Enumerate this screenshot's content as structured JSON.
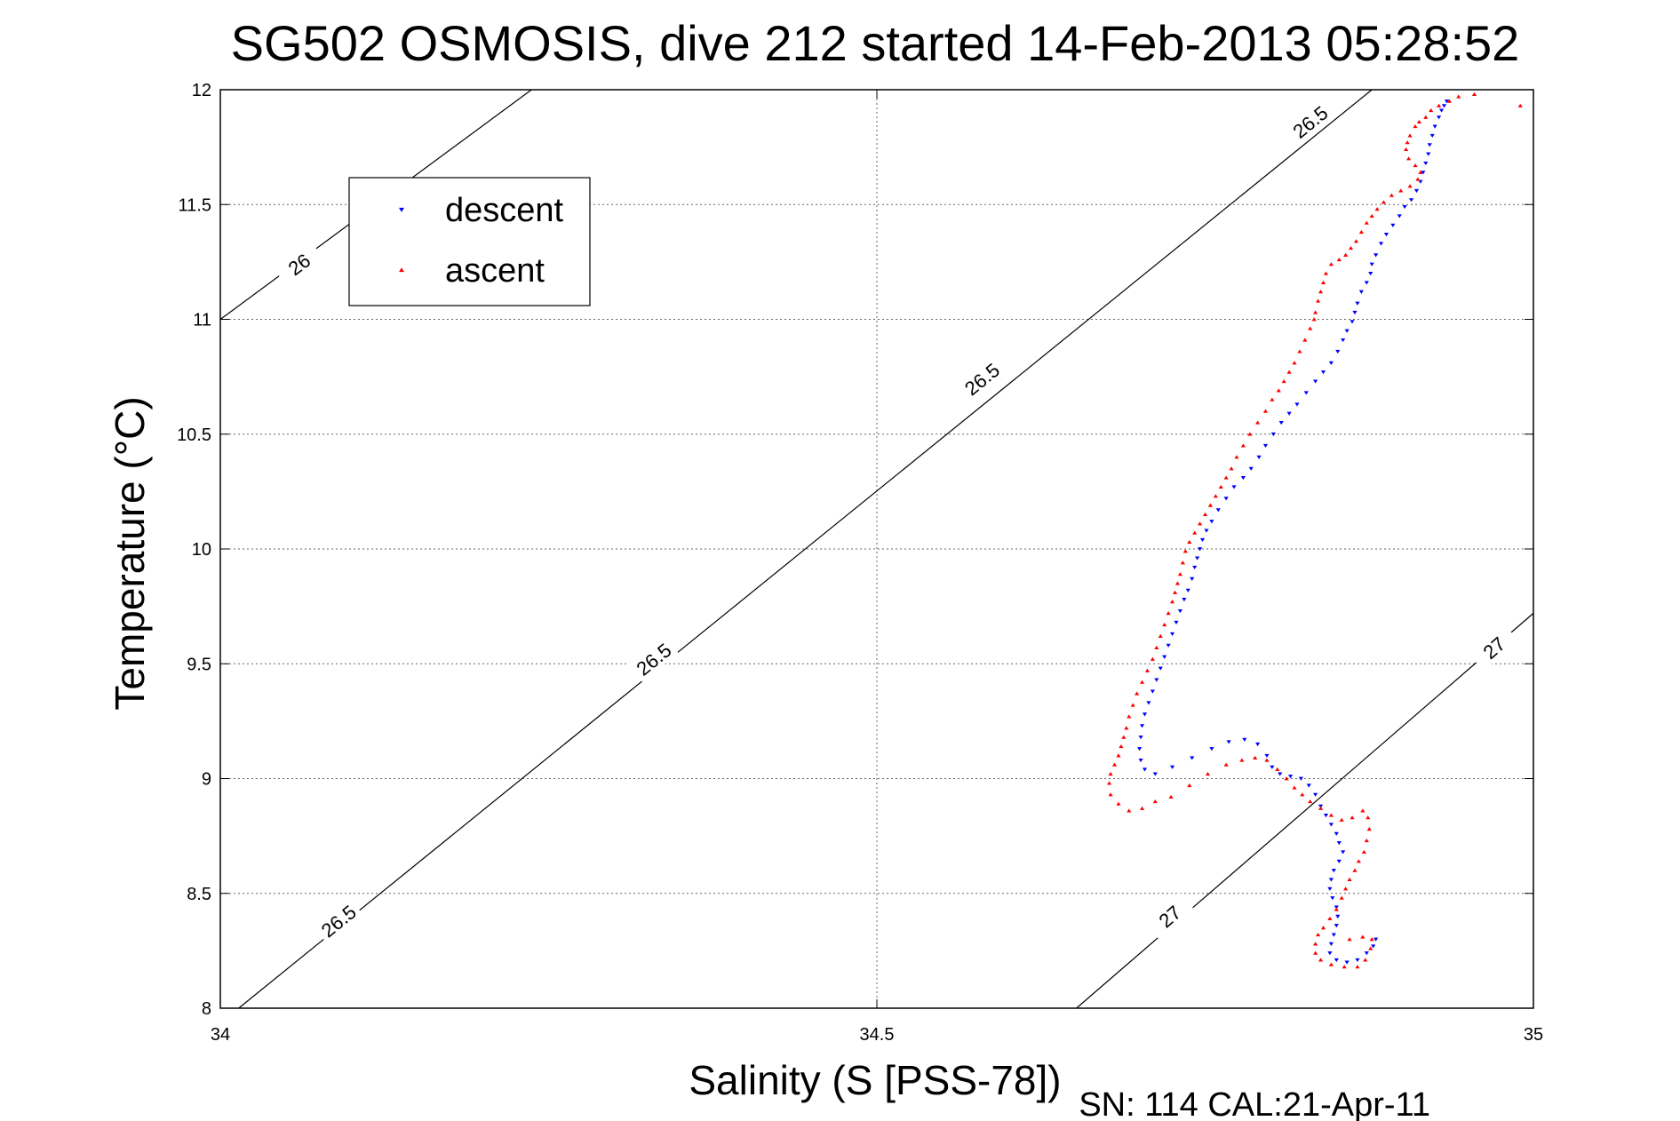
{
  "chart_data": {
    "type": "scatter",
    "title": "SG502 OSMOSIS, dive 212 started 14-Feb-2013 05:28:52",
    "xlabel": "Salinity (S [PSS-78])",
    "ylabel": "Temperature (°C)",
    "xlim": [
      34,
      35
    ],
    "ylim": [
      8,
      12
    ],
    "xticks": [
      "34",
      "34.5",
      "35"
    ],
    "yticks": [
      "8",
      "8.5",
      "9",
      "9.5",
      "10",
      "10.5",
      "11",
      "11.5",
      "12"
    ],
    "grid": true,
    "legend": {
      "placement": "top-left",
      "entries": [
        "descent",
        "ascent"
      ]
    },
    "footer": "SN: 114  CAL:21-Apr-11",
    "colors": {
      "descent": "#0000ff",
      "ascent": "#ff0000",
      "contour": "#000000"
    },
    "contours": [
      {
        "label": "26",
        "points": [
          [
            34.0,
            11.0
          ],
          [
            34.237,
            12.0
          ]
        ],
        "label_at": [
          34.06,
          11.24
        ]
      },
      {
        "label": "26.5",
        "points": [
          [
            34.014,
            8.0
          ],
          [
            34.877,
            12.0
          ]
        ],
        "label_at": [
          [
            34.09,
            8.38
          ],
          [
            34.33,
            9.52
          ],
          [
            34.58,
            10.74
          ],
          [
            34.83,
            11.86
          ]
        ]
      },
      {
        "label": "27",
        "points": [
          [
            34.652,
            8.0
          ],
          [
            35.0,
            9.72
          ]
        ],
        "label_at": [
          [
            34.723,
            8.4
          ],
          [
            34.97,
            9.57
          ]
        ]
      }
    ],
    "series": [
      {
        "name": "descent",
        "marker": "triangle-down",
        "points": [
          [
            34.934,
            11.95
          ],
          [
            34.932,
            11.93
          ],
          [
            34.93,
            11.91
          ],
          [
            34.928,
            11.88
          ],
          [
            34.925,
            11.84
          ],
          [
            34.923,
            11.8
          ],
          [
            34.921,
            11.76
          ],
          [
            34.92,
            11.72
          ],
          [
            34.918,
            11.68
          ],
          [
            34.916,
            11.64
          ],
          [
            34.914,
            11.6
          ],
          [
            34.911,
            11.56
          ],
          [
            34.907,
            11.52
          ],
          [
            34.902,
            11.49
          ],
          [
            34.898,
            11.45
          ],
          [
            34.893,
            11.41
          ],
          [
            34.888,
            11.37
          ],
          [
            34.884,
            11.33
          ],
          [
            34.88,
            11.28
          ],
          [
            34.877,
            11.24
          ],
          [
            34.876,
            11.2
          ],
          [
            34.873,
            11.16
          ],
          [
            34.869,
            11.12
          ],
          [
            34.866,
            11.07
          ],
          [
            34.864,
            11.03
          ],
          [
            34.862,
            10.99
          ],
          [
            34.858,
            10.95
          ],
          [
            34.855,
            10.91
          ],
          [
            34.851,
            10.86
          ],
          [
            34.846,
            10.81
          ],
          [
            34.84,
            10.77
          ],
          [
            34.834,
            10.73
          ],
          [
            34.827,
            10.68
          ],
          [
            34.82,
            10.63
          ],
          [
            34.814,
            10.59
          ],
          [
            34.808,
            10.55
          ],
          [
            34.802,
            10.5
          ],
          [
            34.796,
            10.45
          ],
          [
            34.791,
            10.4
          ],
          [
            34.785,
            10.35
          ],
          [
            34.779,
            10.31
          ],
          [
            34.772,
            10.27
          ],
          [
            34.766,
            10.22
          ],
          [
            34.76,
            10.17
          ],
          [
            34.755,
            10.12
          ],
          [
            34.751,
            10.08
          ],
          [
            34.748,
            10.04
          ],
          [
            34.746,
            10.0
          ],
          [
            34.744,
            9.96
          ],
          [
            34.742,
            9.92
          ],
          [
            34.74,
            9.87
          ],
          [
            34.737,
            9.82
          ],
          [
            34.734,
            9.78
          ],
          [
            34.731,
            9.73
          ],
          [
            34.728,
            9.68
          ],
          [
            34.725,
            9.63
          ],
          [
            34.722,
            9.58
          ],
          [
            34.719,
            9.53
          ],
          [
            34.716,
            9.48
          ],
          [
            34.713,
            9.43
          ],
          [
            34.71,
            9.38
          ],
          [
            34.707,
            9.33
          ],
          [
            34.704,
            9.28
          ],
          [
            34.702,
            9.23
          ],
          [
            34.701,
            9.18
          ],
          [
            34.7,
            9.13
          ],
          [
            34.701,
            9.08
          ],
          [
            34.704,
            9.04
          ],
          [
            34.712,
            9.02
          ],
          [
            34.725,
            9.05
          ],
          [
            34.74,
            9.09
          ],
          [
            34.755,
            9.13
          ],
          [
            34.768,
            9.16
          ],
          [
            34.78,
            9.17
          ],
          [
            34.79,
            9.15
          ],
          [
            34.797,
            9.1
          ],
          [
            34.801,
            9.05
          ],
          [
            34.807,
            9.02
          ],
          [
            34.815,
            9.01
          ],
          [
            34.823,
            9.0
          ],
          [
            34.829,
            8.97
          ],
          [
            34.834,
            8.93
          ],
          [
            34.838,
            8.88
          ],
          [
            34.842,
            8.84
          ],
          [
            34.846,
            8.8
          ],
          [
            34.85,
            8.76
          ],
          [
            34.852,
            8.72
          ],
          [
            34.855,
            8.68
          ],
          [
            34.852,
            8.64
          ],
          [
            34.848,
            8.6
          ],
          [
            34.846,
            8.56
          ],
          [
            34.845,
            8.52
          ],
          [
            34.847,
            8.48
          ],
          [
            34.85,
            8.44
          ],
          [
            34.851,
            8.4
          ],
          [
            34.85,
            8.36
          ],
          [
            34.848,
            8.32
          ],
          [
            34.846,
            8.28
          ],
          [
            34.845,
            8.24
          ],
          [
            34.85,
            8.21
          ],
          [
            34.858,
            8.2
          ],
          [
            34.866,
            8.21
          ],
          [
            34.873,
            8.24
          ],
          [
            34.878,
            8.27
          ],
          [
            34.88,
            8.3
          ]
        ]
      },
      {
        "name": "ascent",
        "marker": "triangle-up",
        "points": [
          [
            34.99,
            11.93
          ],
          [
            34.955,
            11.98
          ],
          [
            34.943,
            11.97
          ],
          [
            34.936,
            11.95
          ],
          [
            34.928,
            11.93
          ],
          [
            34.922,
            11.91
          ],
          [
            34.918,
            11.88
          ],
          [
            34.913,
            11.86
          ],
          [
            34.91,
            11.84
          ],
          [
            34.906,
            11.8
          ],
          [
            34.904,
            11.77
          ],
          [
            34.903,
            11.74
          ],
          [
            34.905,
            11.7
          ],
          [
            34.91,
            11.67
          ],
          [
            34.914,
            11.64
          ],
          [
            34.912,
            11.61
          ],
          [
            34.906,
            11.58
          ],
          [
            34.899,
            11.56
          ],
          [
            34.892,
            11.54
          ],
          [
            34.886,
            11.51
          ],
          [
            34.881,
            11.48
          ],
          [
            34.877,
            11.45
          ],
          [
            34.873,
            11.42
          ],
          [
            34.869,
            11.38
          ],
          [
            34.865,
            11.34
          ],
          [
            34.861,
            11.31
          ],
          [
            34.857,
            11.28
          ],
          [
            34.852,
            11.26
          ],
          [
            34.846,
            11.24
          ],
          [
            34.842,
            11.2
          ],
          [
            34.84,
            11.16
          ],
          [
            34.838,
            11.12
          ],
          [
            34.836,
            11.08
          ],
          [
            34.834,
            11.03
          ],
          [
            34.833,
            11.0
          ],
          [
            34.83,
            10.96
          ],
          [
            34.826,
            10.91
          ],
          [
            34.822,
            10.86
          ],
          [
            34.818,
            10.81
          ],
          [
            34.814,
            10.77
          ],
          [
            34.81,
            10.73
          ],
          [
            34.806,
            10.69
          ],
          [
            34.801,
            10.65
          ],
          [
            34.796,
            10.6
          ],
          [
            34.79,
            10.55
          ],
          [
            34.784,
            10.5
          ],
          [
            34.779,
            10.45
          ],
          [
            34.774,
            10.4
          ],
          [
            34.77,
            10.35
          ],
          [
            34.766,
            10.31
          ],
          [
            34.762,
            10.27
          ],
          [
            34.758,
            10.23
          ],
          [
            34.754,
            10.19
          ],
          [
            34.75,
            10.15
          ],
          [
            34.746,
            10.11
          ],
          [
            34.742,
            10.07
          ],
          [
            34.738,
            10.03
          ],
          [
            34.735,
            9.99
          ],
          [
            34.733,
            9.94
          ],
          [
            34.731,
            9.89
          ],
          [
            34.729,
            9.85
          ],
          [
            34.727,
            9.81
          ],
          [
            34.725,
            9.77
          ],
          [
            34.722,
            9.72
          ],
          [
            34.719,
            9.67
          ],
          [
            34.716,
            9.62
          ],
          [
            34.713,
            9.57
          ],
          [
            34.71,
            9.52
          ],
          [
            34.706,
            9.47
          ],
          [
            34.702,
            9.42
          ],
          [
            34.698,
            9.37
          ],
          [
            34.695,
            9.32
          ],
          [
            34.692,
            9.27
          ],
          [
            34.69,
            9.22
          ],
          [
            34.688,
            9.18
          ],
          [
            34.686,
            9.14
          ],
          [
            34.684,
            9.1
          ],
          [
            34.681,
            9.06
          ],
          [
            34.678,
            9.02
          ],
          [
            34.677,
            8.98
          ],
          [
            34.678,
            8.93
          ],
          [
            34.684,
            8.89
          ],
          [
            34.692,
            8.86
          ],
          [
            34.702,
            8.87
          ],
          [
            34.712,
            8.9
          ],
          [
            34.724,
            8.92
          ],
          [
            34.738,
            8.97
          ],
          [
            34.752,
            9.02
          ],
          [
            34.766,
            9.06
          ],
          [
            34.778,
            9.08
          ],
          [
            34.788,
            9.09
          ],
          [
            34.797,
            9.08
          ],
          [
            34.805,
            9.04
          ],
          [
            34.812,
            9.0
          ],
          [
            34.818,
            8.96
          ],
          [
            34.824,
            8.93
          ],
          [
            34.83,
            8.9
          ],
          [
            34.838,
            8.87
          ],
          [
            34.846,
            8.84
          ],
          [
            34.854,
            8.82
          ],
          [
            34.862,
            8.83
          ],
          [
            34.87,
            8.86
          ],
          [
            34.874,
            8.83
          ],
          [
            34.875,
            8.78
          ],
          [
            34.873,
            8.73
          ],
          [
            34.871,
            8.68
          ],
          [
            34.867,
            8.64
          ],
          [
            34.864,
            8.6
          ],
          [
            34.86,
            8.56
          ],
          [
            34.857,
            8.52
          ],
          [
            34.854,
            8.48
          ],
          [
            34.85,
            8.43
          ],
          [
            34.845,
            8.39
          ],
          [
            34.84,
            8.35
          ],
          [
            34.836,
            8.32
          ],
          [
            34.834,
            8.28
          ],
          [
            34.834,
            8.24
          ],
          [
            34.838,
            8.21
          ],
          [
            34.846,
            8.19
          ],
          [
            34.856,
            8.18
          ],
          [
            34.866,
            8.18
          ],
          [
            34.872,
            8.21
          ],
          [
            34.876,
            8.26
          ],
          [
            34.877,
            8.3
          ],
          [
            34.87,
            8.31
          ],
          [
            34.86,
            8.3
          ]
        ]
      }
    ]
  }
}
